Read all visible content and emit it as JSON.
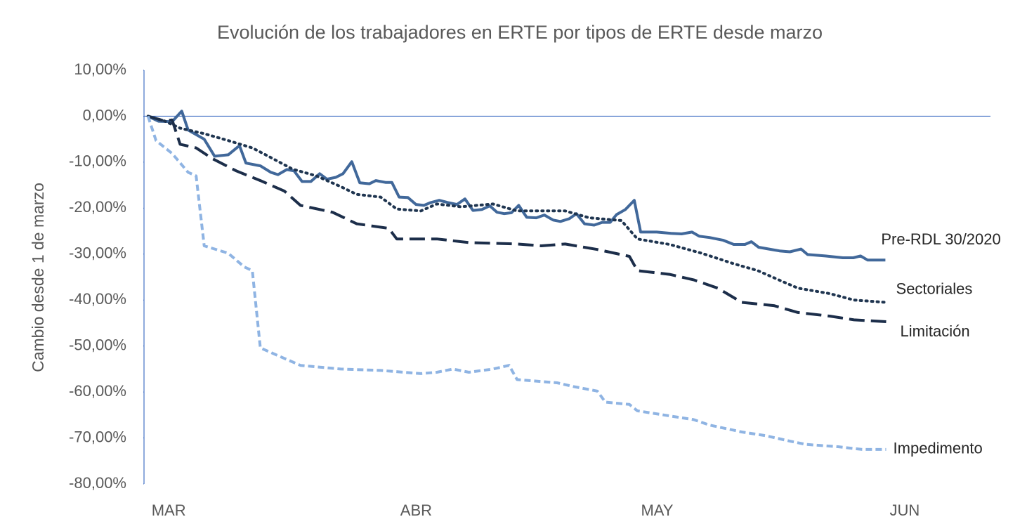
{
  "chart_data": {
    "type": "line",
    "title": "Evolución de los trabajadores en ERTE por tipos de ERTE desde marzo",
    "y_label": "Cambio desde 1 de marzo",
    "xlim": [
      -0.5,
      105
    ],
    "xticks": [
      {
        "value": 0,
        "label": "MAR"
      },
      {
        "value": 31,
        "label": "ABR"
      },
      {
        "value": 61,
        "label": "MAY"
      },
      {
        "value": 92,
        "label": "JUN"
      }
    ],
    "ylim": [
      -80,
      10
    ],
    "yticks": [
      {
        "value": 10,
        "label": "10,00%"
      },
      {
        "value": 0,
        "label": "0,00%"
      },
      {
        "value": -10,
        "label": "-10,00%"
      },
      {
        "value": -20,
        "label": "-20,00%"
      },
      {
        "value": -30,
        "label": "-30,00%"
      },
      {
        "value": -40,
        "label": "-40,00%"
      },
      {
        "value": -50,
        "label": "-50,00%"
      },
      {
        "value": -60,
        "label": "-60,00%"
      },
      {
        "value": -70,
        "label": "-70,00%"
      },
      {
        "value": -80,
        "label": "-80,00%"
      }
    ],
    "zero_line": true,
    "series": [
      {
        "name": "Pre-RDL 30/2020",
        "color": "#41689a",
        "dash": "solid",
        "x": [
          0,
          1.3,
          3,
          4.2,
          5,
          7,
          8.3,
          10,
          11.4,
          12.2,
          14,
          15.3,
          16.2,
          17.3,
          18.2,
          19.2,
          20.3,
          21.4,
          22.3,
          23.4,
          24.3,
          25.4,
          26.4,
          27.6,
          28.4,
          29.6,
          30.4,
          31.3,
          32.4,
          33.4,
          34.4,
          35.2,
          36.3,
          37.4,
          38.5,
          39.5,
          40.5,
          41.6,
          42.6,
          43.5,
          44.4,
          45.3,
          46.2,
          47.2,
          48.4,
          49.4,
          50.5,
          51.4,
          52.5,
          53.4,
          54.4,
          55.6,
          56.6,
          57.6,
          58.4,
          59.5,
          60.6,
          61.4,
          63.4,
          65.2,
          66.5,
          67.8,
          68.7,
          70,
          71.7,
          73,
          74.4,
          75.2,
          76.1,
          77.4,
          78.7,
          80,
          81.4,
          82.2,
          84.4,
          86.6,
          87.9,
          88.8,
          89.7,
          91.9
        ],
        "values": [
          0,
          -1.1,
          -1.2,
          1.1,
          -3,
          -5,
          -8.7,
          -8.4,
          -6.4,
          -10.2,
          -10.8,
          -12.2,
          -12.7,
          -11.6,
          -11.9,
          -14.2,
          -14.2,
          -12.5,
          -13.7,
          -13.3,
          -12.5,
          -9.9,
          -14.5,
          -14.7,
          -14,
          -14.4,
          -14.4,
          -17.6,
          -17.7,
          -19.2,
          -19.4,
          -18.8,
          -18.3,
          -18.8,
          -19.2,
          -18,
          -20.5,
          -20.3,
          -19.5,
          -20.9,
          -21.2,
          -21,
          -19.4,
          -22,
          -22.1,
          -21.5,
          -22.6,
          -22.9,
          -22.3,
          -21.2,
          -23.4,
          -23.7,
          -23.1,
          -23.1,
          -21.4,
          -20.3,
          -18.3,
          -25.2,
          -25.2,
          -25.5,
          -25.6,
          -25.2,
          -26.1,
          -26.4,
          -27,
          -27.9,
          -27.9,
          -27.3,
          -28.5,
          -28.9,
          -29.3,
          -29.5,
          -28.9,
          -30.1,
          -30.4,
          -30.8,
          -30.8,
          -30.4,
          -31.3,
          -31.3
        ]
      },
      {
        "name": "Sectoriales",
        "color": "#1f3550",
        "dash": "dotted",
        "x": [
          0,
          2,
          4,
          7,
          10,
          13,
          15,
          18,
          21,
          24,
          26,
          29,
          31,
          34,
          36,
          39,
          43,
          46,
          52,
          55,
          59,
          61,
          65,
          69,
          73,
          76,
          79,
          81,
          85,
          88,
          92
        ],
        "values": [
          0,
          -1,
          -2.6,
          -3.8,
          -5.3,
          -6.9,
          -8.7,
          -11.5,
          -13,
          -15.3,
          -17,
          -17.6,
          -20.2,
          -20.6,
          -19.1,
          -19.7,
          -19.1,
          -20.6,
          -20.6,
          -22.1,
          -22.7,
          -26.7,
          -27.9,
          -29.8,
          -32.1,
          -33.6,
          -35.9,
          -37.4,
          -38.6,
          -40,
          -40.5
        ]
      },
      {
        "name": "Limitación",
        "color": "#1c2e4a",
        "dash": "long-dashed",
        "x": [
          0,
          2,
          3,
          4,
          6,
          8,
          11,
          14,
          17,
          19,
          23,
          26,
          30,
          31,
          36,
          40,
          46,
          49,
          52,
          56,
          60,
          61,
          65,
          68,
          71,
          74,
          78,
          81,
          85,
          88,
          92
        ],
        "values": [
          0,
          -1,
          -0.8,
          -6.1,
          -6.9,
          -9.2,
          -11.9,
          -14,
          -16.3,
          -19.4,
          -20.9,
          -23.4,
          -24.4,
          -26.7,
          -26.7,
          -27.5,
          -27.8,
          -28.2,
          -27.8,
          -29,
          -30.5,
          -33.6,
          -34.4,
          -35.6,
          -37.4,
          -40.5,
          -41.2,
          -42.7,
          -43.5,
          -44.3,
          -44.7
        ]
      },
      {
        "name": "Impedimento",
        "color": "#8fb4e3",
        "dash": "dashed",
        "x": [
          0,
          1,
          3,
          5,
          6,
          7,
          10,
          12,
          13,
          14,
          17,
          19,
          24,
          29,
          34,
          36,
          38,
          40,
          43,
          45,
          46,
          51,
          53,
          56,
          57,
          60,
          61,
          65,
          68,
          70,
          74,
          77,
          80,
          82,
          86,
          89,
          92
        ],
        "values": [
          0,
          -5.3,
          -8.1,
          -12.2,
          -13,
          -28.2,
          -29.8,
          -32.8,
          -33.6,
          -50.4,
          -52.7,
          -54.2,
          -55,
          -55.3,
          -56,
          -55.7,
          -55,
          -55.7,
          -55,
          -54.2,
          -57.3,
          -58,
          -58.8,
          -59.8,
          -62.2,
          -62.7,
          -64.1,
          -65.2,
          -66,
          -67.2,
          -68.7,
          -69.5,
          -70.7,
          -71.4,
          -71.9,
          -72.5,
          -72.5
        ]
      }
    ]
  }
}
